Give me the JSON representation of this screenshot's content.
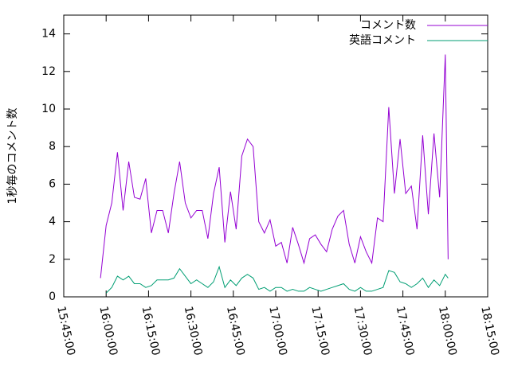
{
  "chart_data": {
    "type": "line",
    "ylabel": "1秒毎のコメント数",
    "x": [
      "15:58:00",
      "16:00:00",
      "16:02:00",
      "16:04:00",
      "16:06:00",
      "16:08:00",
      "16:10:00",
      "16:12:00",
      "16:14:00",
      "16:16:00",
      "16:18:00",
      "16:20:00",
      "16:22:00",
      "16:24:00",
      "16:26:00",
      "16:28:00",
      "16:30:00",
      "16:32:00",
      "16:34:00",
      "16:36:00",
      "16:38:00",
      "16:40:00",
      "16:42:00",
      "16:44:00",
      "16:46:00",
      "16:48:00",
      "16:50:00",
      "16:52:00",
      "16:54:00",
      "16:56:00",
      "16:58:00",
      "17:00:00",
      "17:02:00",
      "17:04:00",
      "17:06:00",
      "17:08:00",
      "17:10:00",
      "17:12:00",
      "17:14:00",
      "17:16:00",
      "17:18:00",
      "17:20:00",
      "17:22:00",
      "17:24:00",
      "17:26:00",
      "17:28:00",
      "17:30:00",
      "17:32:00",
      "17:34:00",
      "17:36:00",
      "17:38:00",
      "17:40:00",
      "17:42:00",
      "17:44:00",
      "17:46:00",
      "17:48:00",
      "17:50:00",
      "17:52:00",
      "17:54:00",
      "17:56:00",
      "17:58:00",
      "18:00:00",
      "18:01:00"
    ],
    "series": [
      {
        "name": "コメント数",
        "color": "#9400d3",
        "values": [
          1.0,
          3.8,
          5.0,
          7.7,
          4.6,
          7.2,
          5.3,
          5.2,
          6.3,
          3.4,
          4.6,
          4.6,
          3.4,
          5.5,
          7.2,
          5.0,
          4.2,
          4.6,
          4.6,
          3.1,
          5.5,
          6.9,
          2.9,
          5.6,
          3.6,
          7.5,
          8.4,
          8.0,
          4.0,
          3.4,
          4.1,
          2.7,
          2.9,
          1.8,
          3.7,
          2.8,
          1.8,
          3.1,
          3.3,
          2.8,
          2.4,
          3.6,
          4.3,
          4.6,
          2.8,
          1.8,
          3.2,
          2.4,
          1.8,
          4.2,
          4.0,
          10.1,
          5.5,
          8.4,
          5.5,
          5.9,
          3.6,
          8.6,
          4.4,
          8.7,
          5.3,
          12.9,
          2.0
        ]
      },
      {
        "name": "英語コメント",
        "color": "#009e73",
        "values": [
          null,
          0.2,
          0.5,
          1.1,
          0.9,
          1.1,
          0.7,
          0.7,
          0.5,
          0.6,
          0.9,
          0.9,
          0.9,
          1.0,
          1.5,
          1.1,
          0.7,
          0.9,
          0.7,
          0.5,
          0.8,
          1.6,
          0.5,
          0.9,
          0.6,
          1.0,
          1.2,
          1.0,
          0.4,
          0.5,
          0.3,
          0.5,
          0.5,
          0.3,
          0.4,
          0.3,
          0.3,
          0.5,
          0.4,
          0.3,
          0.4,
          0.5,
          0.6,
          0.7,
          0.4,
          0.3,
          0.5,
          0.3,
          0.3,
          0.4,
          0.5,
          1.4,
          1.3,
          0.8,
          0.7,
          0.5,
          0.7,
          1.0,
          0.5,
          0.9,
          0.6,
          1.2,
          1.0
        ]
      }
    ],
    "xlim": [
      "15:45:00",
      "18:15:00"
    ],
    "xticks": [
      "15:45:00",
      "16:00:00",
      "16:15:00",
      "16:30:00",
      "16:45:00",
      "17:00:00",
      "17:15:00",
      "17:30:00",
      "17:45:00",
      "18:00:00",
      "18:15:00"
    ],
    "ylim": [
      0,
      15
    ],
    "yticks": [
      0,
      2,
      4,
      6,
      8,
      10,
      12,
      14
    ],
    "legend": "top-right"
  }
}
